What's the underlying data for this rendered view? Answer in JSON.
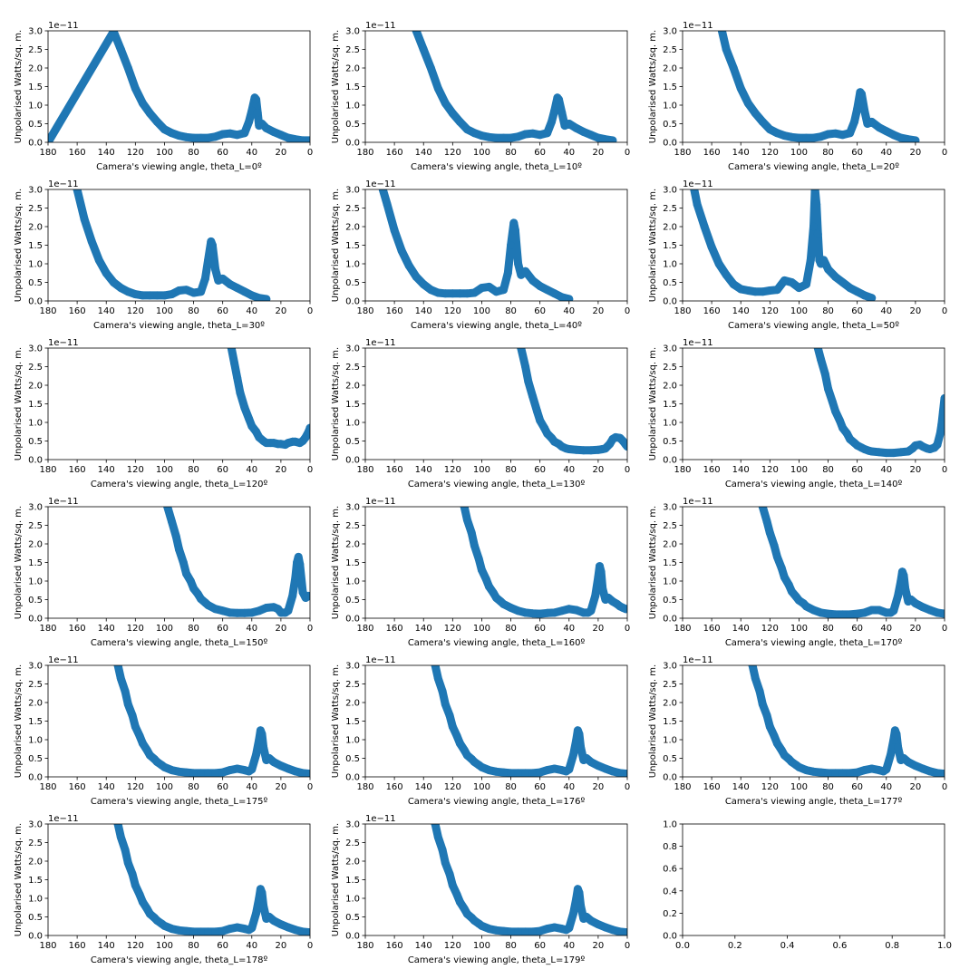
{
  "figure": {
    "shared": {
      "ylabel": "Unpolarised Watts/sq. m.",
      "multiplier": "1e−11",
      "xticks": [
        "180",
        "160",
        "140",
        "120",
        "100",
        "80",
        "60",
        "40",
        "20",
        "0"
      ],
      "yticks": [
        "0.0",
        "0.5",
        "1.0",
        "1.5",
        "2.0",
        "2.5",
        "3.0"
      ],
      "xlim": [
        180,
        0
      ],
      "ylim": [
        0,
        3.0
      ],
      "grid": false,
      "line_color": "#1f77b4"
    },
    "empty_axes": {
      "xticks": [
        "0.0",
        "0.2",
        "0.4",
        "0.6",
        "0.8",
        "1.0"
      ],
      "yticks": [
        "0.0",
        "0.2",
        "0.4",
        "0.6",
        "0.8",
        "1.0"
      ]
    }
  },
  "chart_data": [
    {
      "type": "scatter",
      "xlabel": "Camera's viewing angle, theta_L=0º",
      "x": [
        180,
        135,
        130,
        125,
        120,
        115,
        110,
        105,
        100,
        95,
        90,
        85,
        80,
        75,
        70,
        65,
        60,
        55,
        50,
        45,
        42,
        40,
        38,
        37,
        36,
        35,
        33,
        30,
        25,
        20,
        15,
        10,
        5,
        0
      ],
      "y": [
        0.0,
        2.98,
        2.5,
        2.0,
        1.45,
        1.05,
        0.78,
        0.55,
        0.35,
        0.25,
        0.18,
        0.14,
        0.12,
        0.12,
        0.12,
        0.15,
        0.22,
        0.24,
        0.2,
        0.25,
        0.55,
        0.85,
        1.2,
        1.15,
        0.8,
        0.45,
        0.5,
        0.38,
        0.28,
        0.2,
        0.12,
        0.08,
        0.05,
        0.05
      ]
    },
    {
      "type": "scatter",
      "xlabel": "Camera's viewing angle, theta_L=10º",
      "x": [
        145,
        140,
        135,
        130,
        125,
        120,
        115,
        110,
        105,
        100,
        95,
        90,
        85,
        80,
        75,
        70,
        65,
        60,
        55,
        52,
        50,
        48,
        47,
        45,
        43,
        40,
        35,
        30,
        25,
        20,
        15,
        10
      ],
      "y": [
        3.0,
        2.5,
        2.0,
        1.45,
        1.05,
        0.78,
        0.55,
        0.35,
        0.25,
        0.18,
        0.14,
        0.12,
        0.12,
        0.12,
        0.15,
        0.22,
        0.24,
        0.2,
        0.25,
        0.55,
        0.85,
        1.2,
        1.15,
        0.8,
        0.45,
        0.5,
        0.38,
        0.28,
        0.2,
        0.12,
        0.08,
        0.05
      ]
    },
    {
      "type": "scatter",
      "xlabel": "Camera's viewing angle, theta_L=20º",
      "x": [
        153,
        150,
        145,
        140,
        135,
        130,
        125,
        120,
        115,
        110,
        105,
        100,
        95,
        90,
        85,
        80,
        75,
        70,
        65,
        62,
        60,
        58,
        57,
        55,
        53,
        50,
        45,
        40,
        35,
        30,
        25,
        20
      ],
      "y": [
        3.0,
        2.5,
        2.0,
        1.45,
        1.05,
        0.78,
        0.55,
        0.35,
        0.25,
        0.18,
        0.14,
        0.12,
        0.12,
        0.12,
        0.15,
        0.22,
        0.24,
        0.2,
        0.25,
        0.55,
        0.9,
        1.35,
        1.3,
        0.85,
        0.5,
        0.55,
        0.4,
        0.3,
        0.2,
        0.12,
        0.08,
        0.05
      ]
    },
    {
      "type": "scatter",
      "xlabel": "Camera's viewing angle, theta_L=30º",
      "x": [
        160,
        155,
        150,
        145,
        140,
        135,
        130,
        125,
        120,
        115,
        110,
        105,
        100,
        95,
        90,
        85,
        80,
        75,
        72,
        70,
        68,
        67,
        65,
        63,
        60,
        55,
        50,
        45,
        40,
        35,
        30
      ],
      "y": [
        3.0,
        2.2,
        1.6,
        1.1,
        0.75,
        0.5,
        0.35,
        0.25,
        0.18,
        0.15,
        0.15,
        0.15,
        0.15,
        0.18,
        0.28,
        0.3,
        0.22,
        0.25,
        0.6,
        1.1,
        1.6,
        1.5,
        0.85,
        0.55,
        0.6,
        0.45,
        0.35,
        0.25,
        0.15,
        0.08,
        0.05
      ]
    },
    {
      "type": "scatter",
      "xlabel": "Camera's viewing angle, theta_L=40º",
      "x": [
        168,
        165,
        160,
        155,
        150,
        145,
        140,
        135,
        130,
        125,
        120,
        115,
        110,
        105,
        100,
        95,
        90,
        85,
        82,
        80,
        78,
        77,
        75,
        73,
        70,
        65,
        60,
        55,
        50,
        45,
        40
      ],
      "y": [
        3.0,
        2.6,
        1.9,
        1.35,
        0.95,
        0.65,
        0.45,
        0.3,
        0.22,
        0.2,
        0.2,
        0.2,
        0.2,
        0.22,
        0.35,
        0.38,
        0.25,
        0.3,
        0.75,
        1.5,
        2.1,
        1.9,
        1.0,
        0.7,
        0.8,
        0.55,
        0.4,
        0.3,
        0.2,
        0.1,
        0.05
      ]
    },
    {
      "type": "scatter",
      "xlabel": "Camera's viewing angle, theta_L=50º",
      "x": [
        172,
        170,
        165,
        160,
        155,
        150,
        145,
        140,
        135,
        130,
        125,
        120,
        115,
        110,
        105,
        100,
        95,
        92,
        90,
        89,
        88,
        87,
        86,
        85,
        83,
        80,
        75,
        70,
        65,
        60,
        55,
        50
      ],
      "y": [
        3.0,
        2.6,
        2.0,
        1.45,
        1.0,
        0.7,
        0.45,
        0.32,
        0.28,
        0.25,
        0.25,
        0.28,
        0.3,
        0.55,
        0.5,
        0.35,
        0.45,
        1.1,
        2.0,
        3.0,
        2.6,
        1.8,
        1.1,
        1.0,
        1.1,
        0.85,
        0.65,
        0.5,
        0.35,
        0.25,
        0.15,
        0.08
      ]
    },
    {
      "type": "scatter",
      "xlabel": "Camera's viewing angle, theta_L=120º",
      "x": [
        54,
        52,
        50,
        48,
        45,
        42,
        40,
        37,
        35,
        32,
        30,
        27,
        25,
        22,
        20,
        17,
        15,
        12,
        10,
        7,
        5,
        3,
        1,
        0
      ],
      "y": [
        3.0,
        2.6,
        2.2,
        1.8,
        1.4,
        1.1,
        0.9,
        0.75,
        0.6,
        0.5,
        0.45,
        0.45,
        0.45,
        0.42,
        0.42,
        0.4,
        0.45,
        0.48,
        0.48,
        0.45,
        0.5,
        0.6,
        0.75,
        0.85
      ]
    },
    {
      "type": "scatter",
      "xlabel": "Camera's viewing angle, theta_L=130º",
      "x": [
        73,
        70,
        68,
        65,
        62,
        60,
        57,
        55,
        52,
        50,
        47,
        45,
        42,
        40,
        35,
        30,
        25,
        20,
        17,
        15,
        12,
        10,
        8,
        5,
        3,
        1,
        0
      ],
      "y": [
        3.0,
        2.5,
        2.1,
        1.7,
        1.3,
        1.05,
        0.85,
        0.7,
        0.58,
        0.48,
        0.42,
        0.35,
        0.3,
        0.28,
        0.26,
        0.25,
        0.25,
        0.26,
        0.28,
        0.3,
        0.42,
        0.55,
        0.6,
        0.58,
        0.5,
        0.4,
        0.35
      ]
    },
    {
      "type": "scatter",
      "xlabel": "Camera's viewing angle, theta_L=140º",
      "x": [
        87,
        85,
        82,
        80,
        77,
        75,
        72,
        70,
        67,
        65,
        62,
        60,
        57,
        55,
        52,
        50,
        45,
        40,
        35,
        30,
        25,
        22,
        20,
        17,
        15,
        12,
        10,
        7,
        5,
        3,
        2,
        1,
        0
      ],
      "y": [
        3.0,
        2.7,
        2.3,
        1.9,
        1.55,
        1.3,
        1.05,
        0.85,
        0.7,
        0.55,
        0.45,
        0.38,
        0.32,
        0.28,
        0.24,
        0.22,
        0.2,
        0.18,
        0.18,
        0.2,
        0.22,
        0.3,
        0.38,
        0.4,
        0.35,
        0.3,
        0.28,
        0.32,
        0.4,
        0.7,
        0.95,
        1.3,
        1.65
      ]
    },
    {
      "type": "scatter",
      "xlabel": "Camera's viewing angle, theta_L=150º",
      "x": [
        98,
        95,
        92,
        90,
        87,
        85,
        82,
        80,
        77,
        75,
        72,
        70,
        65,
        60,
        55,
        50,
        45,
        40,
        35,
        30,
        25,
        22,
        20,
        17,
        15,
        12,
        10,
        9,
        8,
        7,
        5,
        3,
        1
      ],
      "y": [
        3.0,
        2.6,
        2.2,
        1.85,
        1.5,
        1.2,
        1.0,
        0.8,
        0.65,
        0.52,
        0.42,
        0.35,
        0.25,
        0.2,
        0.15,
        0.14,
        0.14,
        0.15,
        0.2,
        0.28,
        0.3,
        0.25,
        0.15,
        0.15,
        0.2,
        0.6,
        1.1,
        1.5,
        1.65,
        1.45,
        0.7,
        0.55,
        0.6
      ]
    },
    {
      "type": "scatter",
      "xlabel": "Camera's viewing angle, theta_L=160º",
      "x": [
        112,
        110,
        107,
        105,
        102,
        100,
        97,
        95,
        92,
        90,
        87,
        85,
        80,
        75,
        70,
        65,
        60,
        55,
        50,
        45,
        40,
        35,
        30,
        27,
        25,
        22,
        20,
        19,
        18,
        17,
        15,
        13,
        10,
        7,
        5,
        3,
        1
      ],
      "y": [
        3.0,
        2.65,
        2.3,
        1.95,
        1.6,
        1.3,
        1.05,
        0.85,
        0.68,
        0.55,
        0.45,
        0.38,
        0.28,
        0.2,
        0.15,
        0.13,
        0.12,
        0.14,
        0.15,
        0.2,
        0.25,
        0.22,
        0.15,
        0.15,
        0.2,
        0.6,
        1.1,
        1.4,
        1.25,
        0.8,
        0.5,
        0.55,
        0.45,
        0.38,
        0.32,
        0.28,
        0.25
      ]
    },
    {
      "type": "scatter",
      "xlabel": "Camera's viewing angle, theta_L=170º",
      "x": [
        125,
        122,
        120,
        117,
        115,
        112,
        110,
        107,
        105,
        102,
        100,
        97,
        95,
        90,
        85,
        80,
        75,
        70,
        65,
        60,
        55,
        50,
        45,
        40,
        37,
        35,
        32,
        30,
        29,
        28,
        27,
        25,
        23,
        20,
        15,
        10,
        5,
        0
      ],
      "y": [
        3.0,
        2.6,
        2.3,
        1.95,
        1.65,
        1.35,
        1.1,
        0.9,
        0.72,
        0.58,
        0.48,
        0.4,
        0.32,
        0.22,
        0.15,
        0.12,
        0.1,
        0.1,
        0.1,
        0.12,
        0.15,
        0.22,
        0.22,
        0.15,
        0.15,
        0.2,
        0.6,
        1.0,
        1.25,
        1.15,
        0.8,
        0.45,
        0.5,
        0.4,
        0.3,
        0.22,
        0.15,
        0.12
      ]
    },
    {
      "type": "scatter",
      "xlabel": "Camera's viewing angle, theta_L=175º",
      "x": [
        132,
        130,
        127,
        125,
        122,
        120,
        117,
        115,
        112,
        110,
        107,
        105,
        102,
        100,
        95,
        90,
        85,
        80,
        75,
        70,
        65,
        60,
        55,
        50,
        45,
        42,
        40,
        37,
        35,
        34,
        33,
        32,
        30,
        28,
        25,
        20,
        15,
        10,
        5,
        0
      ],
      "y": [
        3.0,
        2.65,
        2.3,
        1.95,
        1.65,
        1.35,
        1.1,
        0.9,
        0.72,
        0.58,
        0.48,
        0.4,
        0.32,
        0.26,
        0.18,
        0.14,
        0.12,
        0.1,
        0.1,
        0.1,
        0.1,
        0.12,
        0.18,
        0.22,
        0.18,
        0.15,
        0.2,
        0.6,
        1.0,
        1.25,
        1.15,
        0.8,
        0.45,
        0.5,
        0.4,
        0.3,
        0.22,
        0.15,
        0.1,
        0.08
      ]
    },
    {
      "type": "scatter",
      "xlabel": "Camera's viewing angle, theta_L=176º",
      "x": [
        132,
        130,
        127,
        125,
        122,
        120,
        117,
        115,
        112,
        110,
        107,
        105,
        102,
        100,
        95,
        90,
        85,
        80,
        75,
        70,
        65,
        60,
        55,
        50,
        45,
        42,
        40,
        37,
        35,
        34,
        33,
        32,
        30,
        28,
        25,
        20,
        15,
        10,
        5,
        0
      ],
      "y": [
        3.0,
        2.65,
        2.3,
        1.95,
        1.65,
        1.35,
        1.1,
        0.9,
        0.72,
        0.58,
        0.48,
        0.4,
        0.32,
        0.26,
        0.18,
        0.14,
        0.12,
        0.1,
        0.1,
        0.1,
        0.1,
        0.12,
        0.18,
        0.22,
        0.18,
        0.15,
        0.2,
        0.6,
        1.0,
        1.25,
        1.15,
        0.8,
        0.45,
        0.5,
        0.4,
        0.3,
        0.22,
        0.15,
        0.1,
        0.08
      ]
    },
    {
      "type": "scatter",
      "xlabel": "Camera's viewing angle, theta_L=177º",
      "x": [
        132,
        130,
        127,
        125,
        122,
        120,
        117,
        115,
        112,
        110,
        107,
        105,
        102,
        100,
        95,
        90,
        85,
        80,
        75,
        70,
        65,
        60,
        55,
        50,
        45,
        42,
        40,
        37,
        35,
        34,
        33,
        32,
        30,
        28,
        25,
        20,
        15,
        10,
        5,
        0
      ],
      "y": [
        3.0,
        2.65,
        2.3,
        1.95,
        1.65,
        1.35,
        1.1,
        0.9,
        0.72,
        0.58,
        0.48,
        0.4,
        0.32,
        0.26,
        0.18,
        0.14,
        0.12,
        0.1,
        0.1,
        0.1,
        0.1,
        0.12,
        0.18,
        0.22,
        0.18,
        0.15,
        0.2,
        0.6,
        1.0,
        1.25,
        1.15,
        0.8,
        0.45,
        0.5,
        0.4,
        0.3,
        0.22,
        0.15,
        0.1,
        0.08
      ]
    },
    {
      "type": "scatter",
      "xlabel": "Camera's viewing angle, theta_L=178º",
      "x": [
        132,
        130,
        127,
        125,
        122,
        120,
        117,
        115,
        112,
        110,
        107,
        105,
        102,
        100,
        95,
        90,
        85,
        80,
        75,
        70,
        65,
        60,
        55,
        50,
        45,
        42,
        40,
        37,
        35,
        34,
        33,
        32,
        30,
        28,
        25,
        20,
        15,
        10,
        5,
        0
      ],
      "y": [
        3.0,
        2.65,
        2.3,
        1.95,
        1.65,
        1.35,
        1.1,
        0.9,
        0.72,
        0.58,
        0.48,
        0.4,
        0.32,
        0.26,
        0.18,
        0.14,
        0.12,
        0.1,
        0.1,
        0.1,
        0.1,
        0.12,
        0.18,
        0.22,
        0.18,
        0.15,
        0.2,
        0.6,
        1.0,
        1.25,
        1.15,
        0.8,
        0.45,
        0.5,
        0.4,
        0.3,
        0.22,
        0.15,
        0.1,
        0.08
      ]
    },
    {
      "type": "scatter",
      "xlabel": "Camera's viewing angle, theta_L=179º",
      "x": [
        132,
        130,
        127,
        125,
        122,
        120,
        117,
        115,
        112,
        110,
        107,
        105,
        102,
        100,
        95,
        90,
        85,
        80,
        75,
        70,
        65,
        60,
        55,
        50,
        45,
        42,
        40,
        37,
        35,
        34,
        33,
        32,
        30,
        28,
        25,
        20,
        15,
        10,
        5,
        0
      ],
      "y": [
        3.0,
        2.65,
        2.3,
        1.95,
        1.65,
        1.35,
        1.1,
        0.9,
        0.72,
        0.58,
        0.48,
        0.4,
        0.32,
        0.26,
        0.18,
        0.14,
        0.12,
        0.1,
        0.1,
        0.1,
        0.1,
        0.12,
        0.18,
        0.22,
        0.18,
        0.15,
        0.2,
        0.6,
        1.0,
        1.25,
        1.15,
        0.8,
        0.45,
        0.5,
        0.4,
        0.3,
        0.22,
        0.15,
        0.1,
        0.08
      ]
    }
  ]
}
